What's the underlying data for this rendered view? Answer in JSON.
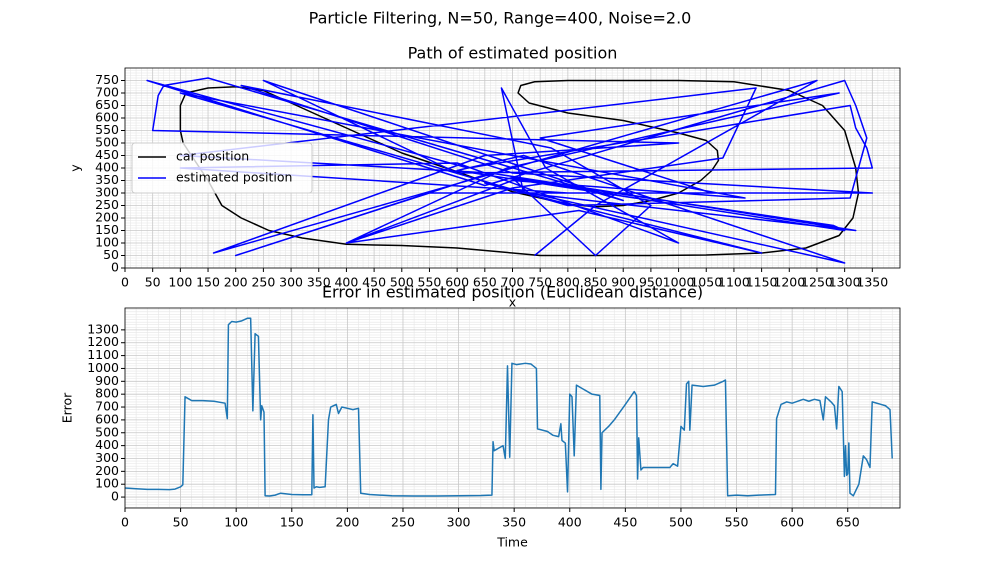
{
  "title": "Particle Filtering, N=50, Range=400, Noise=2.0",
  "chart_data": [
    {
      "type": "line",
      "title": "Path of estimated position",
      "xlabel": "x",
      "ylabel": "y",
      "xlim": [
        0,
        1400
      ],
      "ylim": [
        0,
        800
      ],
      "xticks": [
        0,
        50,
        100,
        150,
        200,
        250,
        300,
        350,
        400,
        450,
        500,
        550,
        600,
        650,
        700,
        750,
        800,
        850,
        900,
        950,
        1000,
        1050,
        1100,
        1150,
        1200,
        1250,
        1300,
        1350
      ],
      "yticks": [
        0,
        50,
        100,
        150,
        200,
        250,
        300,
        350,
        400,
        450,
        500,
        550,
        600,
        650,
        700,
        750
      ],
      "grid": true,
      "minor_grid": 5,
      "legend": "center left",
      "series": [
        {
          "name": "car position",
          "color": "#000000",
          "x": [
            750,
            850,
            950,
            1050,
            1150,
            1230,
            1290,
            1315,
            1325,
            1320,
            1300,
            1260,
            1200,
            1100,
            1000,
            900,
            800,
            740,
            715,
            710,
            730,
            800,
            900,
            1000,
            1050,
            1070,
            1072,
            1060,
            1040,
            1000,
            950,
            900,
            850,
            800,
            750,
            700,
            600,
            500,
            400,
            300,
            250,
            200,
            150,
            110,
            100,
            100,
            105,
            120,
            135,
            150,
            175,
            210,
            260,
            320,
            400,
            450,
            500,
            600,
            700,
            750
          ],
          "values": [
            50,
            50,
            50,
            52,
            60,
            80,
            130,
            200,
            300,
            400,
            550,
            650,
            710,
            745,
            750,
            750,
            750,
            745,
            730,
            700,
            660,
            620,
            590,
            540,
            510,
            470,
            430,
            390,
            350,
            300,
            270,
            250,
            245,
            255,
            280,
            305,
            385,
            460,
            560,
            660,
            710,
            725,
            720,
            700,
            650,
            550,
            500,
            450,
            400,
            350,
            250,
            200,
            150,
            120,
            95,
            92,
            90,
            80,
            60,
            50
          ]
        },
        {
          "name": "estimated position",
          "color": "#0000ff",
          "x": [
            740,
            850,
            1250,
            700,
            160,
            650,
            1000,
            50,
            55,
            60,
            70,
            150,
            900,
            250,
            600,
            1350,
            1340,
            1320,
            1310,
            620,
            40,
            650,
            1300,
            1320,
            1340,
            1310,
            800,
            100,
            700,
            1120,
            700,
            400,
            690,
            1290,
            750,
            1060,
            550,
            200,
            660,
            1320,
            720,
            680,
            760,
            1000,
            600,
            100,
            800,
            1350,
            700,
            210,
            770,
            950,
            850,
            700,
            1280,
            1300,
            600,
            720,
            1300,
            650,
            1150,
            820,
            400,
            700,
            1080,
            1140,
            100,
            660
          ],
          "values": [
            50,
            250,
            750,
            400,
            60,
            450,
            500,
            550,
            620,
            690,
            730,
            760,
            270,
            750,
            380,
            400,
            480,
            560,
            650,
            400,
            750,
            330,
            750,
            650,
            520,
            280,
            250,
            700,
            450,
            280,
            350,
            100,
            400,
            700,
            520,
            300,
            300,
            50,
            380,
            150,
            300,
            720,
            400,
            100,
            420,
            400,
            300,
            300,
            380,
            730,
            480,
            250,
            50,
            360,
            170,
            150,
            390,
            450,
            20,
            340,
            60,
            230,
            100,
            320,
            440,
            720,
            450,
            380
          ]
        }
      ]
    },
    {
      "type": "line",
      "title": "Error in estimated position (Euclidean distance)",
      "xlabel": "Time",
      "ylabel": "Error",
      "xlim": [
        0,
        697
      ],
      "ylim": [
        -85,
        1470
      ],
      "xticks": [
        0,
        50,
        100,
        150,
        200,
        250,
        300,
        350,
        400,
        450,
        500,
        550,
        600,
        650
      ],
      "yticks": [
        0,
        100,
        200,
        300,
        400,
        500,
        600,
        700,
        800,
        900,
        1000,
        1100,
        1200,
        1300
      ],
      "grid": true,
      "minor_grid": 5,
      "series": [
        {
          "name": "error",
          "color": "#1f77b4",
          "x": [
            0,
            10,
            20,
            30,
            40,
            45,
            50,
            52,
            54,
            58,
            60,
            70,
            80,
            90,
            92,
            93,
            96,
            100,
            105,
            110,
            113,
            115,
            117,
            120,
            122,
            123,
            125,
            126,
            130,
            135,
            140,
            145,
            150,
            160,
            168,
            169,
            170,
            172,
            175,
            180,
            183,
            185,
            190,
            192,
            195,
            200,
            205,
            210,
            212,
            220,
            240,
            260,
            280,
            300,
            320,
            330,
            331,
            332,
            340,
            342,
            344,
            346,
            348,
            352,
            360,
            365,
            370,
            371,
            380,
            385,
            390,
            392,
            393,
            396,
            398,
            400,
            402,
            404,
            406,
            410,
            420,
            427,
            428,
            429,
            435,
            440,
            450,
            458,
            460,
            461,
            462,
            464,
            466,
            480,
            490,
            493,
            497,
            500,
            503,
            505,
            507,
            508,
            510,
            520,
            530,
            538,
            540,
            542,
            550,
            560,
            570,
            585,
            586,
            590,
            595,
            600,
            610,
            615,
            620,
            625,
            628,
            630,
            635,
            638,
            640,
            642,
            645,
            647,
            648,
            649,
            650,
            651,
            652,
            655,
            660,
            664,
            667,
            670,
            672,
            680,
            684,
            688,
            690
          ],
          "values": [
            70,
            65,
            60,
            60,
            58,
            62,
            80,
            95,
            780,
            760,
            750,
            750,
            745,
            730,
            610,
            1340,
            1365,
            1360,
            1370,
            1390,
            1390,
            670,
            1270,
            1250,
            600,
            710,
            660,
            10,
            8,
            15,
            30,
            25,
            20,
            18,
            18,
            640,
            70,
            80,
            75,
            80,
            600,
            700,
            720,
            650,
            700,
            690,
            680,
            690,
            30,
            20,
            10,
            8,
            8,
            10,
            12,
            15,
            430,
            360,
            400,
            300,
            1020,
            310,
            1040,
            1030,
            1040,
            1035,
            1000,
            530,
            510,
            480,
            470,
            570,
            440,
            420,
            40,
            800,
            780,
            320,
            870,
            850,
            800,
            790,
            60,
            500,
            550,
            600,
            720,
            820,
            790,
            140,
            460,
            210,
            230,
            230,
            230,
            260,
            240,
            550,
            520,
            880,
            900,
            520,
            870,
            860,
            870,
            900,
            910,
            10,
            15,
            10,
            15,
            20,
            610,
            720,
            740,
            730,
            760,
            745,
            760,
            750,
            600,
            780,
            740,
            710,
            530,
            860,
            820,
            160,
            400,
            170,
            180,
            420,
            30,
            10,
            100,
            320,
            290,
            230,
            740,
            720,
            710,
            680,
            300
          ]
        }
      ]
    }
  ]
}
